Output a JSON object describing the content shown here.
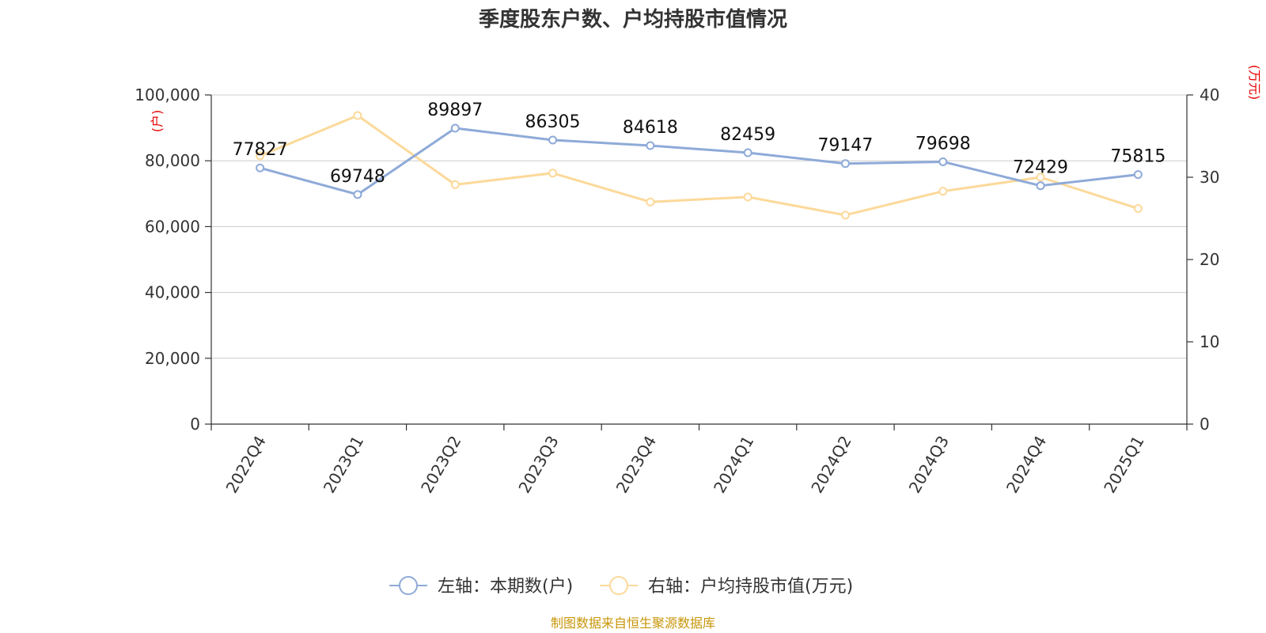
{
  "chart_data": {
    "type": "line",
    "title": "季度股东户数、户均持股市值情况",
    "categories": [
      "2022Q4",
      "2023Q1",
      "2023Q2",
      "2023Q3",
      "2023Q4",
      "2024Q1",
      "2024Q2",
      "2024Q3",
      "2024Q4",
      "2025Q1"
    ],
    "y_left": {
      "unit_label": "(户)",
      "range": [
        0,
        100000
      ],
      "ticks": [
        "0",
        "20,000",
        "40,000",
        "60,000",
        "80,000",
        "100,000"
      ],
      "tick_values": [
        0,
        20000,
        40000,
        60000,
        80000,
        100000
      ]
    },
    "y_right": {
      "unit_label": "(万元)",
      "range": [
        0,
        40
      ],
      "ticks": [
        "0",
        "10",
        "20",
        "30",
        "40"
      ],
      "tick_values": [
        0,
        10,
        20,
        30,
        40
      ]
    },
    "series": [
      {
        "name": "左轴：本期数(户)",
        "axis": "left",
        "color": "#8eaad8",
        "values": [
          77827,
          69748,
          89897,
          86305,
          84618,
          82459,
          79147,
          79698,
          72429,
          75815
        ],
        "data_labels": [
          "77827",
          "69748",
          "89897",
          "86305",
          "84618",
          "82459",
          "79147",
          "79698",
          "72429",
          "75815"
        ]
      },
      {
        "name": "右轴：户均持股市值(万元)",
        "axis": "right",
        "color": "#fcd99a",
        "values": [
          32.6,
          37.5,
          29.1,
          30.5,
          27.0,
          27.6,
          25.4,
          28.3,
          30.0,
          26.2
        ]
      }
    ],
    "grid": true,
    "legend_position": "bottom"
  },
  "source_note": "制图数据来自恒生聚源数据库"
}
